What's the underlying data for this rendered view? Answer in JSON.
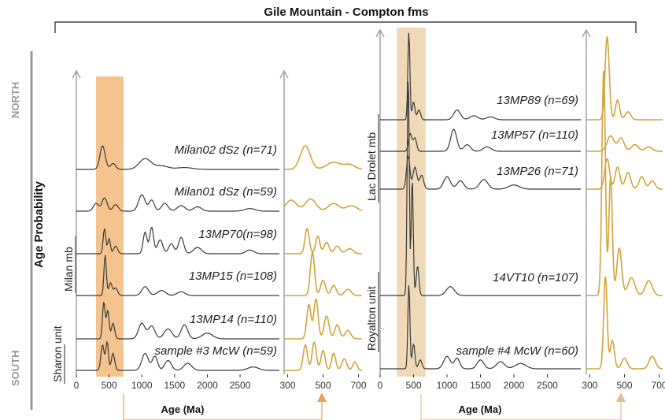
{
  "title": "Gile Mountain - Compton fms",
  "y_axis_label": "Age Probability",
  "north_label": "NORTH",
  "south_label": "SOUTH",
  "colors": {
    "dark": "#3a3a3a",
    "orange": "#d4a33a",
    "band_left": "#f5c48e",
    "band_right": "#efd9b7",
    "axis": "#9ea3ab"
  },
  "chart_data": [
    {
      "type": "line",
      "panel": "left-main",
      "xlabel": "Age (Ma)",
      "xticks": [
        0,
        500,
        1000,
        1500,
        2000,
        2500
      ],
      "xlim": [
        0,
        3100
      ],
      "highlight_range": [
        300,
        720
      ],
      "group_labels": [
        "Milan mb",
        "Sharon unit"
      ],
      "series": [
        {
          "name": "Milan02 dSz (n=71)",
          "peaks": [
            [
              400,
              1.0,
              40
            ],
            [
              560,
              0.25,
              40
            ],
            [
              1050,
              0.45,
              90
            ],
            [
              1300,
              0.15,
              100
            ],
            [
              1650,
              0.08,
              120
            ]
          ]
        },
        {
          "name": "Milan01 dSz (n=59)",
          "peaks": [
            [
              300,
              0.35,
              40
            ],
            [
              430,
              0.6,
              40
            ],
            [
              600,
              0.3,
              40
            ],
            [
              1000,
              0.75,
              50
            ],
            [
              1150,
              0.5,
              40
            ],
            [
              1350,
              0.35,
              50
            ],
            [
              1600,
              0.25,
              60
            ],
            [
              1850,
              0.2,
              60
            ],
            [
              2650,
              0.12,
              80
            ]
          ]
        },
        {
          "name": "13MP70(n=98)",
          "peaks": [
            [
              430,
              1.0,
              20
            ],
            [
              500,
              0.6,
              20
            ],
            [
              600,
              0.3,
              30
            ],
            [
              1050,
              0.85,
              30
            ],
            [
              1150,
              1.05,
              30
            ],
            [
              1280,
              0.55,
              40
            ],
            [
              1450,
              0.4,
              40
            ],
            [
              1600,
              0.65,
              40
            ],
            [
              1850,
              0.25,
              60
            ],
            [
              2650,
              0.15,
              60
            ]
          ]
        },
        {
          "name": "13MP15 (n=108)",
          "peaks": [
            [
              440,
              1.6,
              18
            ],
            [
              520,
              0.5,
              25
            ],
            [
              600,
              0.3,
              30
            ],
            [
              1050,
              0.35,
              50
            ],
            [
              1300,
              0.2,
              60
            ],
            [
              1600,
              0.15,
              60
            ]
          ]
        },
        {
          "name": "13MP14 (n=110)",
          "peaks": [
            [
              420,
              1.3,
              20
            ],
            [
              480,
              1.0,
              20
            ],
            [
              560,
              0.55,
              25
            ],
            [
              1000,
              0.55,
              50
            ],
            [
              1150,
              0.45,
              50
            ],
            [
              1400,
              0.35,
              60
            ],
            [
              1650,
              0.5,
              50
            ],
            [
              2000,
              0.2,
              80
            ]
          ]
        },
        {
          "name": "sample #3  McW (n=59)",
          "peaks": [
            [
              400,
              0.9,
              25
            ],
            [
              470,
              1.0,
              20
            ],
            [
              560,
              0.6,
              25
            ],
            [
              1050,
              0.6,
              50
            ],
            [
              1200,
              0.5,
              40
            ],
            [
              1400,
              0.35,
              50
            ],
            [
              1700,
              0.25,
              60
            ],
            [
              2700,
              0.12,
              80
            ]
          ]
        }
      ]
    },
    {
      "type": "line",
      "panel": "left-zoom",
      "xticks": [
        300,
        500,
        700
      ],
      "xlim": [
        280,
        720
      ],
      "series_note": "zoom of left-main, same samples",
      "series": [
        {
          "name": "Milan02 dSz (n=71)",
          "peaks": [
            [
              400,
              1.0,
              28
            ],
            [
              560,
              0.3,
              40
            ],
            [
              650,
              0.2,
              30
            ]
          ]
        },
        {
          "name": "Milan01 dSz (n=59)",
          "peaks": [
            [
              320,
              0.5,
              30
            ],
            [
              430,
              0.55,
              30
            ],
            [
              560,
              0.35,
              30
            ],
            [
              660,
              0.25,
              30
            ]
          ]
        },
        {
          "name": "13MP70(n=98)",
          "peaks": [
            [
              410,
              1.0,
              12
            ],
            [
              470,
              0.7,
              12
            ],
            [
              520,
              0.45,
              14
            ],
            [
              580,
              0.3,
              16
            ],
            [
              650,
              0.2,
              20
            ]
          ]
        },
        {
          "name": "13MP15 (n=108)",
          "peaks": [
            [
              440,
              1.7,
              12
            ],
            [
              500,
              0.6,
              14
            ],
            [
              560,
              0.4,
              14
            ],
            [
              640,
              0.25,
              18
            ]
          ]
        },
        {
          "name": "13MP14 (n=110)",
          "peaks": [
            [
              420,
              1.2,
              12
            ],
            [
              460,
              1.4,
              12
            ],
            [
              520,
              0.8,
              14
            ],
            [
              580,
              0.5,
              14
            ],
            [
              640,
              0.3,
              16
            ]
          ]
        },
        {
          "name": "sample #3  McW (n=59)",
          "peaks": [
            [
              400,
              0.9,
              12
            ],
            [
              450,
              1.0,
              12
            ],
            [
              500,
              0.7,
              12
            ],
            [
              560,
              0.6,
              12
            ],
            [
              620,
              0.4,
              14
            ],
            [
              680,
              0.3,
              12
            ]
          ]
        }
      ]
    },
    {
      "type": "line",
      "panel": "right-main",
      "xlabel": "Age (Ma)",
      "xticks": [
        0,
        500,
        1000,
        1500,
        2000,
        2500
      ],
      "xlim": [
        0,
        3000
      ],
      "highlight_range": [
        250,
        680
      ],
      "group_labels": [
        "Lac Drolet mb",
        "Royalton unit"
      ],
      "series": [
        {
          "name": "13MP89 (n=69)",
          "peaks": [
            [
              430,
              4.5,
              15
            ],
            [
              500,
              0.9,
              20
            ],
            [
              580,
              0.5,
              25
            ],
            [
              1150,
              0.5,
              50
            ],
            [
              1400,
              0.2,
              60
            ],
            [
              1650,
              0.15,
              60
            ]
          ]
        },
        {
          "name": "13MP57 (n=110)",
          "peaks": [
            [
              450,
              0.8,
              25
            ],
            [
              520,
              0.6,
              25
            ],
            [
              1100,
              1.0,
              45
            ],
            [
              1300,
              0.3,
              50
            ],
            [
              1600,
              0.2,
              60
            ]
          ]
        },
        {
          "name": "13MP26 (n=71)",
          "peaks": [
            [
              420,
              1.2,
              25
            ],
            [
              520,
              0.8,
              30
            ],
            [
              620,
              0.5,
              30
            ],
            [
              1000,
              0.45,
              50
            ],
            [
              1200,
              0.3,
              50
            ],
            [
              1550,
              0.35,
              60
            ],
            [
              2000,
              0.15,
              80
            ]
          ]
        },
        {
          "name": "14VT10 (n=107)",
          "peaks": [
            [
              420,
              3.8,
              15
            ],
            [
              480,
              2.0,
              15
            ],
            [
              560,
              0.5,
              20
            ],
            [
              1050,
              0.15,
              60
            ]
          ]
        },
        {
          "name": "sample #4 McW (n=60)",
          "peaks": [
            [
              430,
              2.4,
              15
            ],
            [
              500,
              0.7,
              20
            ],
            [
              600,
              0.25,
              25
            ],
            [
              1000,
              0.35,
              50
            ],
            [
              1150,
              0.3,
              40
            ],
            [
              1500,
              0.25,
              50
            ],
            [
              1800,
              0.2,
              60
            ],
            [
              2100,
              0.15,
              80
            ]
          ]
        }
      ]
    },
    {
      "type": "line",
      "panel": "right-zoom",
      "xticks": [
        300,
        500,
        700
      ],
      "xlim": [
        280,
        720
      ],
      "series_note": "zoom of right-main, same samples",
      "series": [
        {
          "name": "13MP89 (n=69)",
          "peaks": [
            [
              400,
              4.2,
              12
            ],
            [
              460,
              1.0,
              12
            ],
            [
              520,
              0.4,
              16
            ]
          ]
        },
        {
          "name": "13MP57 (n=110)",
          "peaks": [
            [
              420,
              0.7,
              20
            ],
            [
              480,
              0.6,
              18
            ],
            [
              560,
              0.3,
              20
            ],
            [
              640,
              0.2,
              20
            ]
          ]
        },
        {
          "name": "13MP26 (n=71)",
          "peaks": [
            [
              400,
              1.1,
              14
            ],
            [
              460,
              0.8,
              14
            ],
            [
              520,
              0.6,
              16
            ],
            [
              600,
              0.45,
              16
            ],
            [
              660,
              0.3,
              16
            ]
          ]
        },
        {
          "name": "14VT10 (n=107)",
          "peaks": [
            [
              380,
              3.8,
              10
            ],
            [
              420,
              2.0,
              10
            ],
            [
              470,
              0.8,
              14
            ],
            [
              540,
              0.3,
              20
            ],
            [
              640,
              0.25,
              20
            ]
          ]
        },
        {
          "name": "sample #4 McW (n=60)",
          "peaks": [
            [
              390,
              2.6,
              10
            ],
            [
              430,
              0.8,
              12
            ],
            [
              500,
              0.3,
              16
            ],
            [
              660,
              0.35,
              18
            ]
          ]
        }
      ]
    }
  ]
}
